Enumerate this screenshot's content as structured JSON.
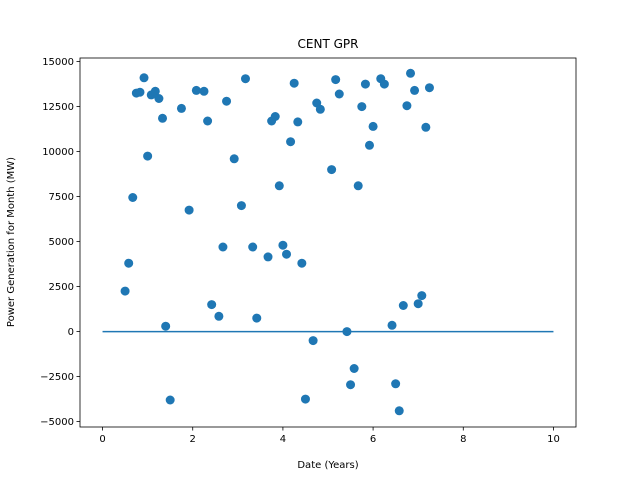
{
  "chart_data": {
    "type": "scatter",
    "title": "CENT GPR",
    "xlabel": "Date (Years)",
    "ylabel": "Power Generation for Month (MW)",
    "xlim": [
      -0.5,
      10.5
    ],
    "ylim": [
      -5300,
      15200
    ],
    "xticks": [
      0,
      2,
      4,
      6,
      8,
      10
    ],
    "xtick_labels": [
      "0",
      "2",
      "4",
      "6",
      "8",
      "10"
    ],
    "yticks": [
      -5000,
      -2500,
      0,
      2500,
      5000,
      7500,
      10000,
      12500,
      15000
    ],
    "ytick_labels": [
      "−5000",
      "−2500",
      "0",
      "2500",
      "5000",
      "7500",
      "10000",
      "12500",
      "15000"
    ],
    "marker_color": "#1f77b4",
    "line_color": "#1f77b4",
    "baseline": {
      "x": [
        0,
        10
      ],
      "y": [
        0,
        0
      ]
    },
    "points": [
      {
        "x": 0.5,
        "y": 2250
      },
      {
        "x": 0.58,
        "y": 3800
      },
      {
        "x": 0.67,
        "y": 7450
      },
      {
        "x": 0.75,
        "y": 13250
      },
      {
        "x": 0.83,
        "y": 13300
      },
      {
        "x": 0.92,
        "y": 14100
      },
      {
        "x": 1.0,
        "y": 9750
      },
      {
        "x": 1.08,
        "y": 13150
      },
      {
        "x": 1.17,
        "y": 13350
      },
      {
        "x": 1.25,
        "y": 12950
      },
      {
        "x": 1.33,
        "y": 11850
      },
      {
        "x": 1.4,
        "y": 300
      },
      {
        "x": 1.5,
        "y": -3800
      },
      {
        "x": 1.75,
        "y": 12400
      },
      {
        "x": 1.92,
        "y": 6750
      },
      {
        "x": 2.08,
        "y": 13400
      },
      {
        "x": 2.25,
        "y": 13350
      },
      {
        "x": 2.33,
        "y": 11700
      },
      {
        "x": 2.42,
        "y": 1500
      },
      {
        "x": 2.58,
        "y": 850
      },
      {
        "x": 2.67,
        "y": 4700
      },
      {
        "x": 2.75,
        "y": 12800
      },
      {
        "x": 2.92,
        "y": 9600
      },
      {
        "x": 3.08,
        "y": 7000
      },
      {
        "x": 3.17,
        "y": 14050
      },
      {
        "x": 3.33,
        "y": 4700
      },
      {
        "x": 3.42,
        "y": 750
      },
      {
        "x": 3.67,
        "y": 4150
      },
      {
        "x": 3.75,
        "y": 11700
      },
      {
        "x": 3.83,
        "y": 11950
      },
      {
        "x": 3.92,
        "y": 8100
      },
      {
        "x": 4.0,
        "y": 4800
      },
      {
        "x": 4.08,
        "y": 4300
      },
      {
        "x": 4.17,
        "y": 10550
      },
      {
        "x": 4.25,
        "y": 13800
      },
      {
        "x": 4.33,
        "y": 11650
      },
      {
        "x": 4.42,
        "y": 3800
      },
      {
        "x": 4.5,
        "y": -3750
      },
      {
        "x": 4.67,
        "y": -500
      },
      {
        "x": 4.75,
        "y": 12700
      },
      {
        "x": 4.83,
        "y": 12350
      },
      {
        "x": 5.08,
        "y": 9000
      },
      {
        "x": 5.17,
        "y": 14000
      },
      {
        "x": 5.25,
        "y": 13200
      },
      {
        "x": 5.42,
        "y": 0
      },
      {
        "x": 5.5,
        "y": -2950
      },
      {
        "x": 5.58,
        "y": -2050
      },
      {
        "x": 5.67,
        "y": 8100
      },
      {
        "x": 5.75,
        "y": 12500
      },
      {
        "x": 5.83,
        "y": 13750
      },
      {
        "x": 5.92,
        "y": 10350
      },
      {
        "x": 6.0,
        "y": 11400
      },
      {
        "x": 6.17,
        "y": 14050
      },
      {
        "x": 6.25,
        "y": 13750
      },
      {
        "x": 6.42,
        "y": 350
      },
      {
        "x": 6.5,
        "y": -2900
      },
      {
        "x": 6.58,
        "y": -4400
      },
      {
        "x": 6.67,
        "y": 1450
      },
      {
        "x": 6.75,
        "y": 12550
      },
      {
        "x": 6.83,
        "y": 14350
      },
      {
        "x": 6.92,
        "y": 13400
      },
      {
        "x": 7.0,
        "y": 1550
      },
      {
        "x": 7.08,
        "y": 2000
      },
      {
        "x": 7.17,
        "y": 11350
      },
      {
        "x": 7.25,
        "y": 13550
      }
    ]
  }
}
